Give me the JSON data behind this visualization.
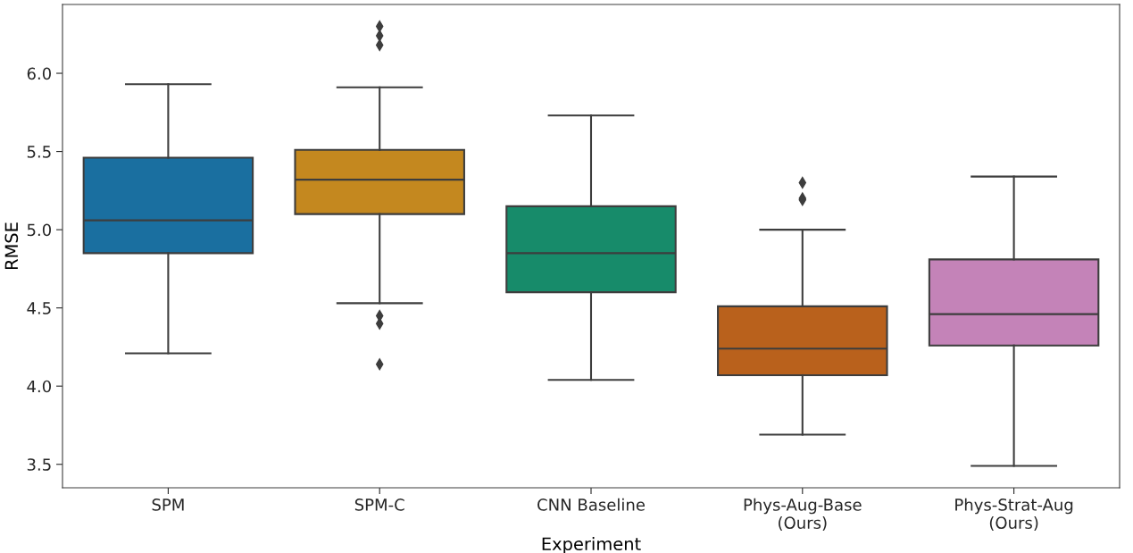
{
  "chart_data": {
    "type": "box",
    "xlabel": "Experiment",
    "ylabel": "RMSE",
    "categories": [
      "SPM",
      "SPM-C",
      "CNN Baseline",
      "Phys-Aug-Base\n(Ours)",
      "Phys-Strat-Aug\n(Ours)"
    ],
    "colors": [
      "#1a6fa0",
      "#c4881f",
      "#178b6a",
      "#b9611c",
      "#c483b8"
    ],
    "boxes": [
      {
        "low": 4.21,
        "q1": 4.85,
        "median": 5.06,
        "q3": 5.46,
        "high": 5.93
      },
      {
        "low": 4.53,
        "q1": 5.1,
        "median": 5.32,
        "q3": 5.51,
        "high": 5.91,
        "outliers": [
          6.3,
          6.24,
          6.18,
          4.45,
          4.4,
          4.14
        ]
      },
      {
        "low": 4.04,
        "q1": 4.6,
        "median": 4.85,
        "q3": 5.15,
        "high": 5.73
      },
      {
        "low": 3.69,
        "q1": 4.07,
        "median": 4.24,
        "q3": 4.51,
        "high": 5.0,
        "outliers": [
          5.3,
          5.2,
          5.19
        ]
      },
      {
        "low": 3.49,
        "q1": 4.26,
        "median": 4.46,
        "q3": 4.81,
        "high": 5.34
      }
    ],
    "ylim": [
      3.35,
      6.44
    ],
    "yticks": [
      3.5,
      {
        "value": 4,
        "label": "4.0"
      },
      4.5,
      {
        "value": 5,
        "label": "5.0"
      },
      5.5,
      {
        "value": 6,
        "label": "6.0"
      }
    ],
    "grid": false,
    "marker": "diamond"
  }
}
